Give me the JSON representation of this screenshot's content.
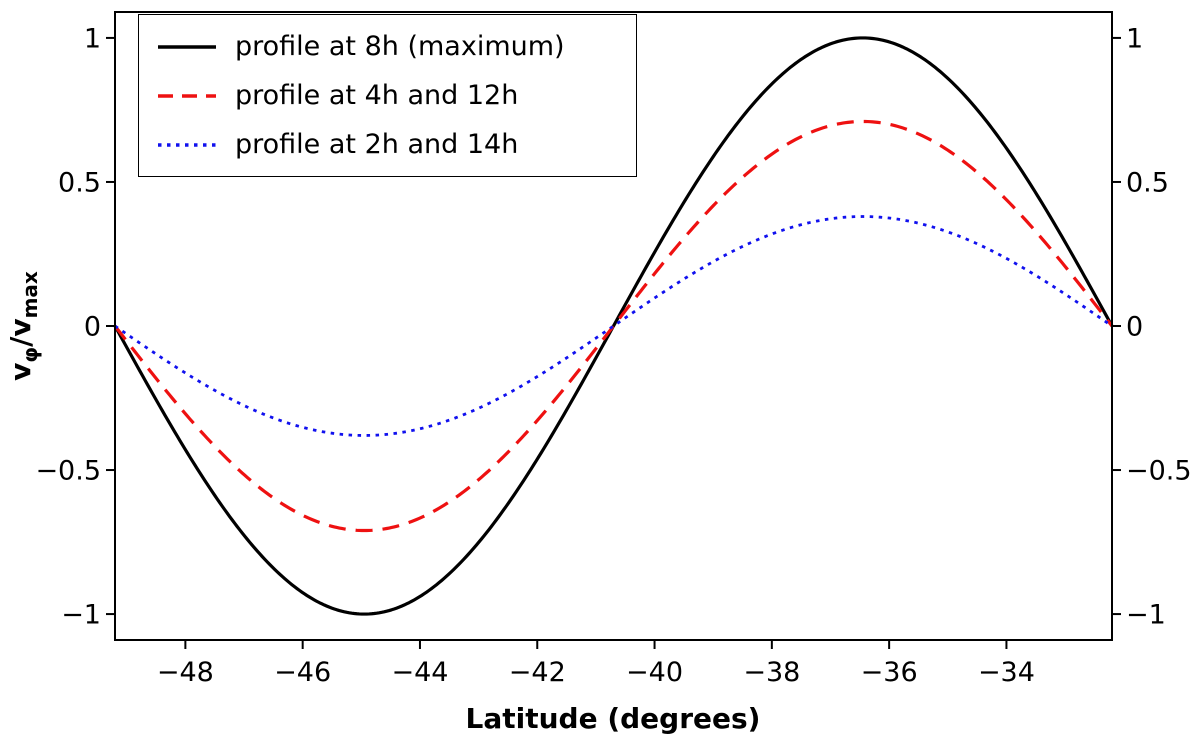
{
  "chart_data": {
    "type": "line",
    "title": "",
    "xlabel": "Latitude (degrees)",
    "ylabel": "v_phi/v_max",
    "ylabel_parts": {
      "base1": "v",
      "sub1": "φ",
      "base2": "/v",
      "sub2": "max"
    },
    "xlim": [
      -49.2,
      -32.2
    ],
    "ylim": [
      -1.09,
      1.09
    ],
    "x_ticks": [
      -48,
      -46,
      -44,
      -42,
      -40,
      -38,
      -36,
      -34
    ],
    "y_ticks": [
      1,
      0.5,
      0,
      -0.5,
      -1
    ],
    "y_axis_mirrored": true,
    "grid": false,
    "legend_position": "top-left",
    "axis_color": "#000000",
    "curve_model": "y(x) = -amplitude * sin(2*pi*(x - x_start) / period)",
    "x_start": -49.2,
    "period": 17.0,
    "zero_crossings": [
      -49.2,
      -40.7,
      -32.2
    ],
    "x_at_minimum": -44.95,
    "x_at_maximum": -36.45,
    "series": [
      {
        "name": "profile at 8h (maximum)",
        "amplitude": 1.0,
        "min_point": [
          -44.95,
          -1.0
        ],
        "max_point": [
          -36.45,
          1.0
        ],
        "color": "#000000",
        "style": "solid",
        "dasharray": "none",
        "legend_dasharray": "none",
        "width": 3.2
      },
      {
        "name": "profile at 4h and 12h",
        "amplitude": 0.71,
        "min_point": [
          -44.95,
          -0.71
        ],
        "max_point": [
          -36.45,
          0.71
        ],
        "color": "#ee1111",
        "style": "long-dash",
        "dasharray": "17,10",
        "legend_dasharray": "15,9",
        "width": 3.2
      },
      {
        "name": "profile at 2h and 14h",
        "amplitude": 0.38,
        "min_point": [
          -44.95,
          -0.38
        ],
        "max_point": [
          -36.45,
          0.38
        ],
        "color": "#1111ee",
        "style": "dotted",
        "dasharray": "3.5,5.5",
        "legend_dasharray": "3.5,5.5",
        "width": 2.8
      }
    ]
  }
}
